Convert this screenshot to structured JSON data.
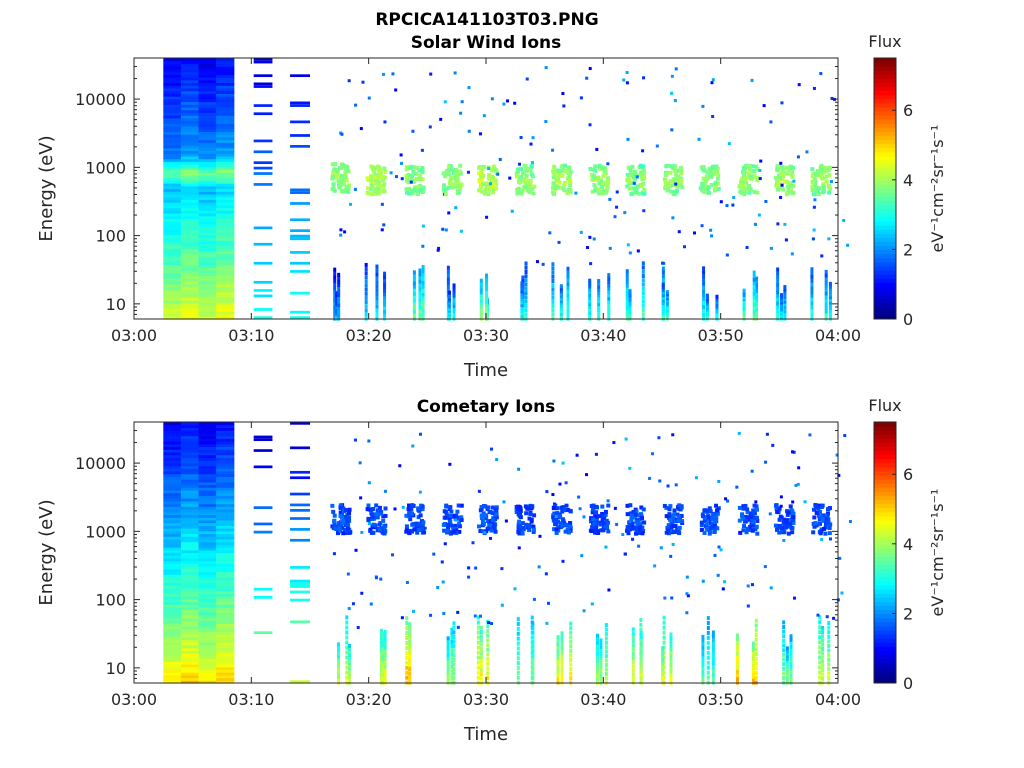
{
  "figure": {
    "title": "RPCICA141103T03.PNG"
  },
  "chart_data": [
    {
      "type": "heatmap",
      "title": "Solar Wind Ions",
      "xlabel": "Time",
      "ylabel": "Energy (eV)",
      "xlim": [
        "03:00",
        "04:00"
      ],
      "x_ticks": [
        "03:00",
        "03:10",
        "03:20",
        "03:30",
        "03:40",
        "03:50",
        "04:00"
      ],
      "y_scale": "log",
      "ylim": [
        6,
        40000
      ],
      "y_ticks": [
        10,
        100,
        1000,
        10000
      ],
      "y_tick_labels": [
        "10",
        "100",
        "1000",
        "10000"
      ],
      "colorbar": {
        "label": "Flux",
        "unit": "eV⁻¹cm⁻²sr⁻¹s⁻¹",
        "range": [
          0,
          7.5
        ],
        "ticks": [
          0,
          2,
          4,
          6
        ],
        "colormap": "jet"
      },
      "segments": [
        {
          "kind": "full_sweep",
          "start_min": 2.5,
          "end_min": 8.5,
          "low_e_flux": 4.5,
          "high_e_flux": 0.9,
          "peak_energy": 800,
          "peak_flux": 4.5
        },
        {
          "kind": "lines",
          "start_min": 10.2,
          "end_min": 11.8
        },
        {
          "kind": "lines",
          "start_min": 13.3,
          "end_min": 15.0
        }
      ],
      "bursts": [
        {
          "time_min": 17.5,
          "energy": 750,
          "flux": 3.0,
          "low_e_flux": 2.5
        },
        {
          "time_min": 20.5,
          "energy": 700,
          "flux": 3.2,
          "low_e_flux": 2.8
        },
        {
          "time_min": 23.8,
          "energy": 700,
          "flux": 3.0,
          "low_e_flux": 3.6
        },
        {
          "time_min": 27.0,
          "energy": 700,
          "flux": 3.0,
          "low_e_flux": 3.0
        },
        {
          "time_min": 30.0,
          "energy": 700,
          "flux": 3.3,
          "low_e_flux": 3.8
        },
        {
          "time_min": 33.2,
          "energy": 700,
          "flux": 3.0,
          "low_e_flux": 3.0
        },
        {
          "time_min": 36.3,
          "energy": 700,
          "flux": 3.1,
          "low_e_flux": 3.2
        },
        {
          "time_min": 39.5,
          "energy": 700,
          "flux": 3.0,
          "low_e_flux": 3.2
        },
        {
          "time_min": 42.6,
          "energy": 700,
          "flux": 2.9,
          "low_e_flux": 3.3
        },
        {
          "time_min": 45.8,
          "energy": 700,
          "flux": 3.0,
          "low_e_flux": 3.3
        },
        {
          "time_min": 48.9,
          "energy": 700,
          "flux": 3.0,
          "low_e_flux": 3.0
        },
        {
          "time_min": 52.2,
          "energy": 700,
          "flux": 3.0,
          "low_e_flux": 3.6
        },
        {
          "time_min": 55.3,
          "energy": 700,
          "flux": 3.1,
          "low_e_flux": 3.0
        },
        {
          "time_min": 58.4,
          "energy": 700,
          "flux": 3.0,
          "low_e_flux": 3.1
        }
      ]
    },
    {
      "type": "heatmap",
      "title": "Cometary Ions",
      "xlabel": "Time",
      "ylabel": "Energy (eV)",
      "xlim": [
        "03:00",
        "04:00"
      ],
      "x_ticks": [
        "03:00",
        "03:10",
        "03:20",
        "03:30",
        "03:40",
        "03:50",
        "04:00"
      ],
      "y_scale": "log",
      "ylim": [
        6,
        40000
      ],
      "y_ticks": [
        10,
        100,
        1000,
        10000
      ],
      "y_tick_labels": [
        "10",
        "100",
        "1000",
        "10000"
      ],
      "colorbar": {
        "label": "Flux",
        "unit": "eV⁻¹cm⁻²sr⁻¹s⁻¹",
        "range": [
          0,
          7.5
        ],
        "ticks": [
          0,
          2,
          4,
          6
        ],
        "colormap": "jet"
      },
      "segments": [
        {
          "kind": "full_sweep",
          "start_min": 2.5,
          "end_min": 8.5,
          "low_e_flux": 5.0,
          "high_e_flux": 0.9,
          "peak_energy": 0,
          "peak_flux": 0
        },
        {
          "kind": "lines",
          "start_min": 10.2,
          "end_min": 11.8
        },
        {
          "kind": "lines",
          "start_min": 13.3,
          "end_min": 15.0
        }
      ],
      "bursts": [
        {
          "time_min": 17.5,
          "energy": 1600,
          "flux": 1.2,
          "low_e_flux": 4.3
        },
        {
          "time_min": 20.5,
          "energy": 1600,
          "flux": 1.2,
          "low_e_flux": 4.5
        },
        {
          "time_min": 23.8,
          "energy": 1600,
          "flux": 1.2,
          "low_e_flux": 5.2
        },
        {
          "time_min": 27.0,
          "energy": 1600,
          "flux": 1.2,
          "low_e_flux": 4.0
        },
        {
          "time_min": 30.0,
          "energy": 1600,
          "flux": 1.2,
          "low_e_flux": 4.8
        },
        {
          "time_min": 33.2,
          "energy": 1600,
          "flux": 1.2,
          "low_e_flux": 3.8
        },
        {
          "time_min": 36.3,
          "energy": 1600,
          "flux": 1.2,
          "low_e_flux": 4.8
        },
        {
          "time_min": 39.5,
          "energy": 1600,
          "flux": 1.2,
          "low_e_flux": 4.2
        },
        {
          "time_min": 42.6,
          "energy": 1600,
          "flux": 1.2,
          "low_e_flux": 4.6
        },
        {
          "time_min": 45.8,
          "energy": 1600,
          "flux": 1.2,
          "low_e_flux": 4.6
        },
        {
          "time_min": 48.9,
          "energy": 1600,
          "flux": 1.2,
          "low_e_flux": 3.6
        },
        {
          "time_min": 52.2,
          "energy": 1600,
          "flux": 1.2,
          "low_e_flux": 5.2
        },
        {
          "time_min": 55.3,
          "energy": 1600,
          "flux": 1.2,
          "low_e_flux": 3.8
        },
        {
          "time_min": 58.4,
          "energy": 1600,
          "flux": 1.2,
          "low_e_flux": 4.4
        }
      ]
    }
  ]
}
